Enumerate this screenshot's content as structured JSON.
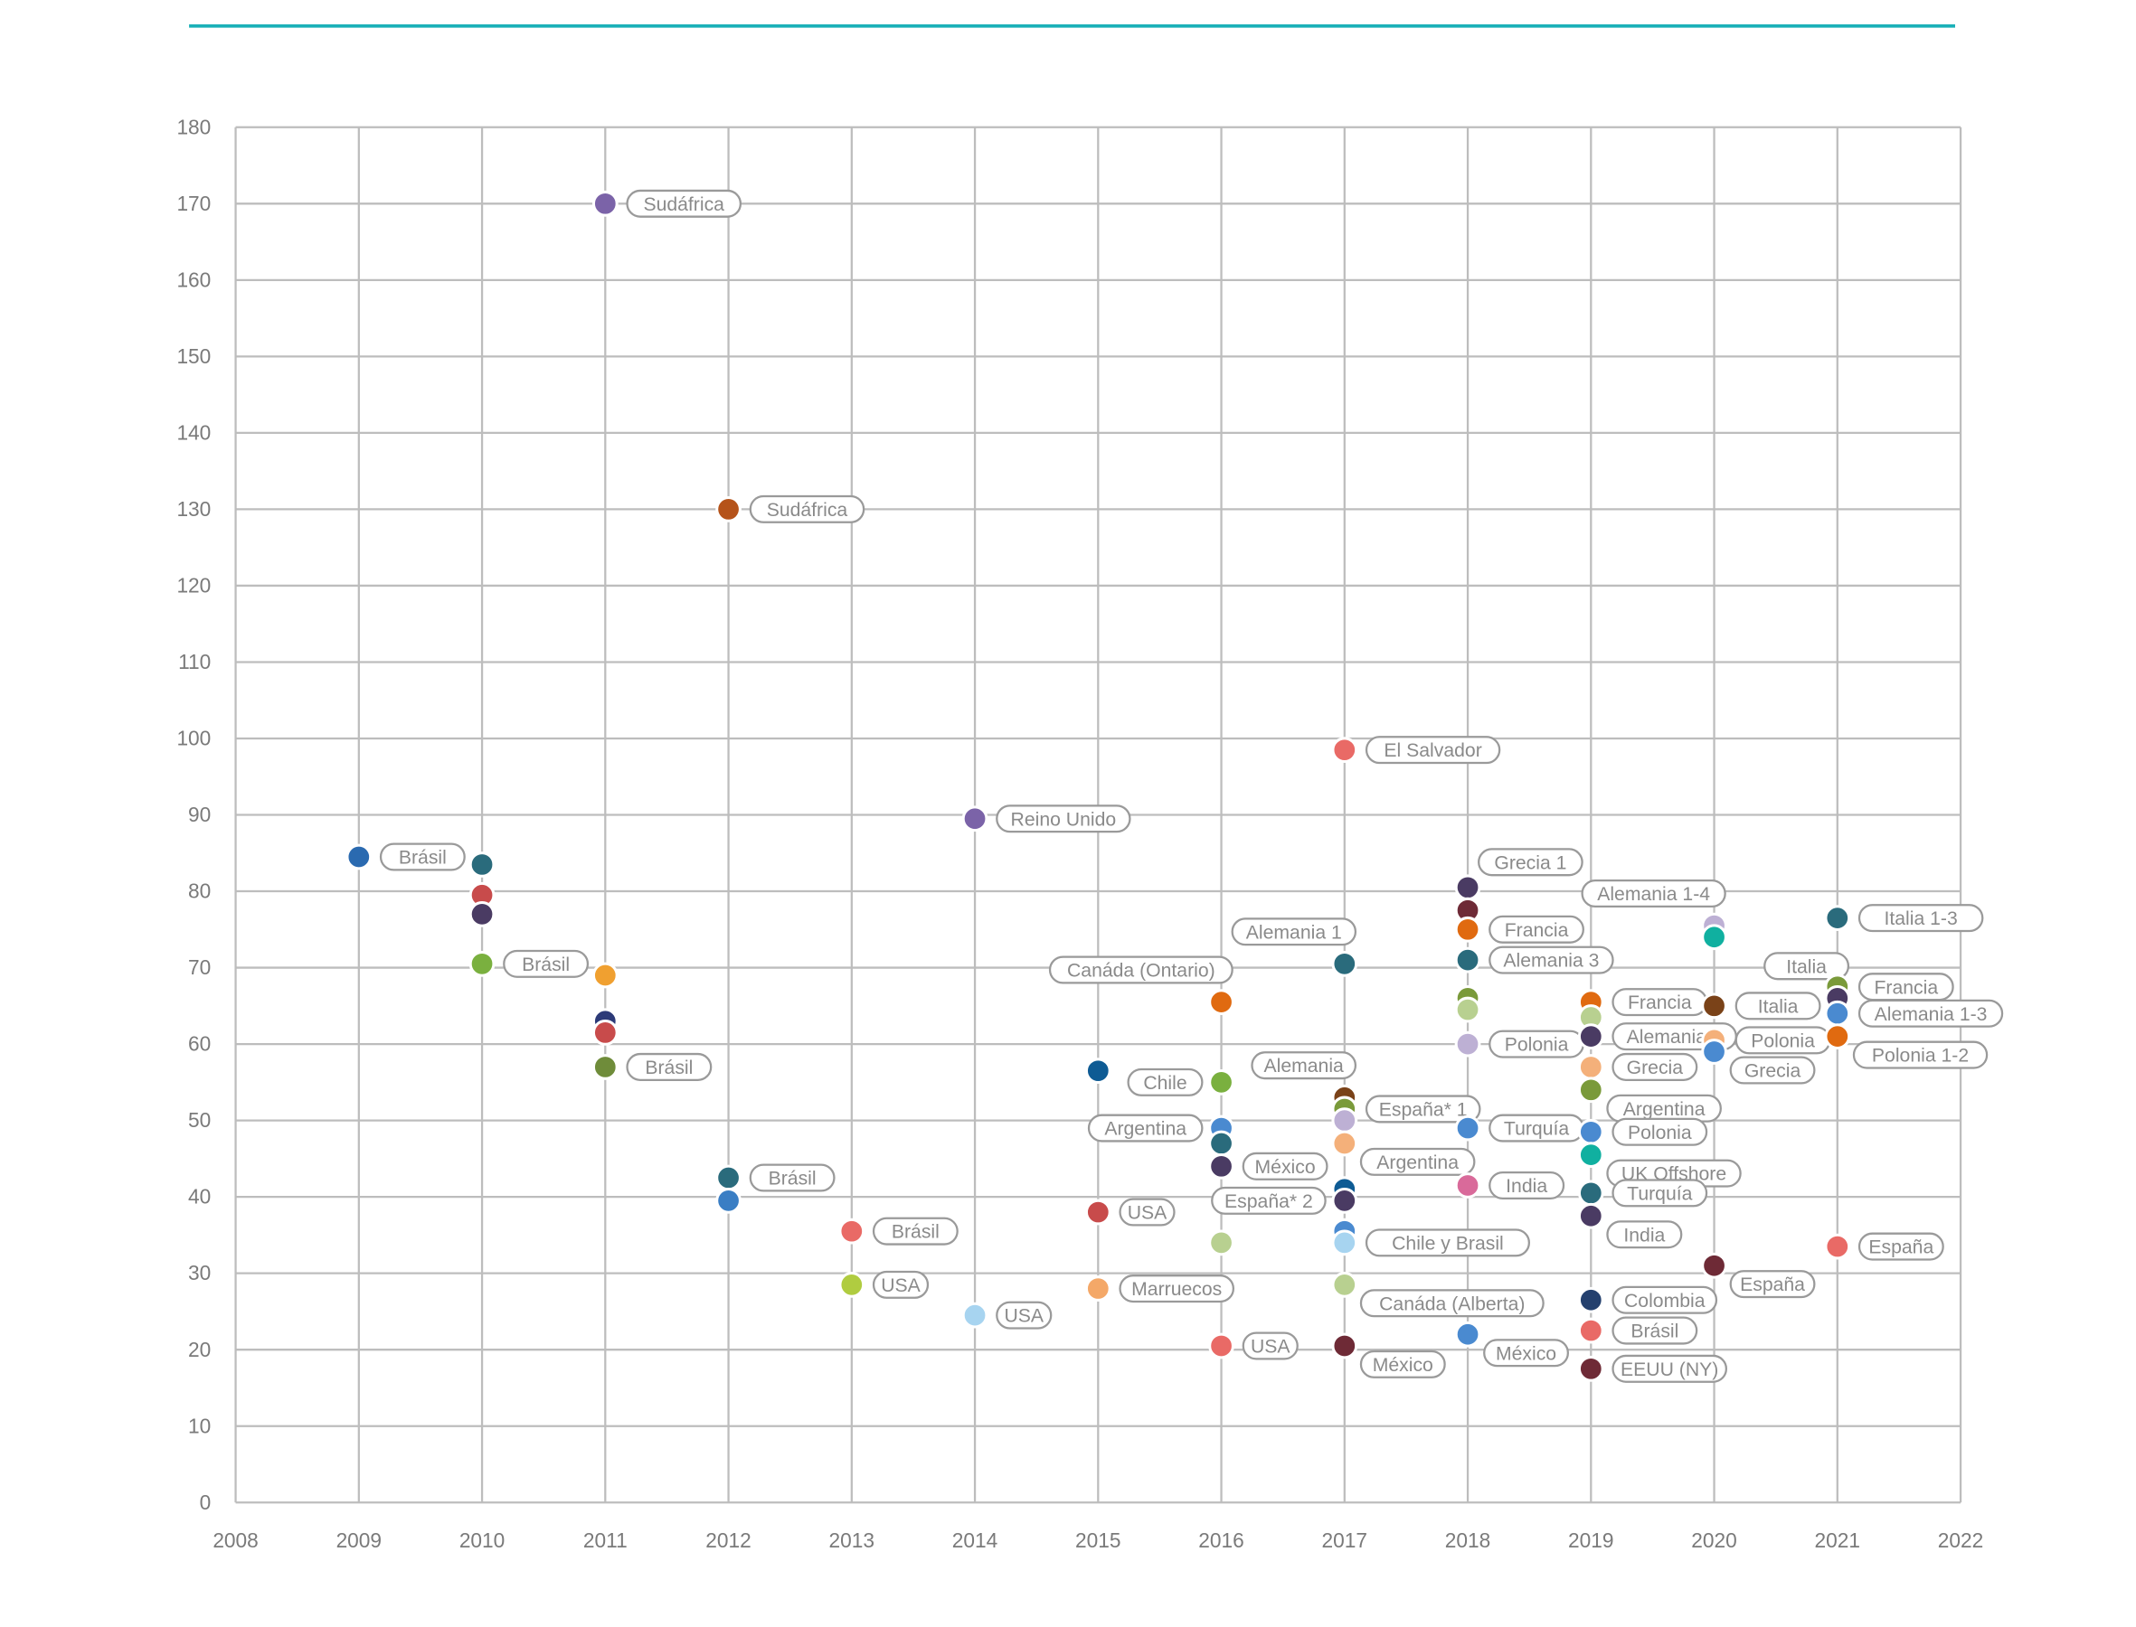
{
  "chart_data": {
    "type": "scatter",
    "title": "",
    "xlabel": "",
    "ylabel": "",
    "xlim": [
      2008,
      2022
    ],
    "ylim": [
      0,
      180
    ],
    "x_ticks": [
      2008,
      2009,
      2010,
      2011,
      2012,
      2013,
      2014,
      2015,
      2016,
      2017,
      2018,
      2019,
      2020,
      2021,
      2022
    ],
    "y_ticks": [
      0,
      10,
      20,
      30,
      40,
      50,
      60,
      70,
      80,
      90,
      100,
      110,
      120,
      130,
      140,
      150,
      160,
      170,
      180
    ],
    "grid": true,
    "accent_line_color": "#1ab0b8",
    "points": [
      {
        "x": 2009,
        "y": 84.5,
        "color": "#2a6ab0",
        "label": "Brásil",
        "side": "right"
      },
      {
        "x": 2010,
        "y": 83.5,
        "color": "#2a6b7c",
        "label": "",
        "side": "right"
      },
      {
        "x": 2010,
        "y": 79.5,
        "color": "#c84b4b",
        "label": "",
        "side": "right"
      },
      {
        "x": 2010,
        "y": 77,
        "color": "#4a3b63",
        "label": "",
        "side": "right"
      },
      {
        "x": 2010,
        "y": 70.5,
        "color": "#7ab03f",
        "label": "Brásil",
        "side": "right"
      },
      {
        "x": 2011,
        "y": 170,
        "color": "#7b63a8",
        "label": "Sudáfrica",
        "side": "right"
      },
      {
        "x": 2011,
        "y": 69,
        "color": "#f0a030",
        "label": "",
        "side": "right"
      },
      {
        "x": 2011,
        "y": 63,
        "color": "#2c3a78",
        "label": "",
        "side": "right"
      },
      {
        "x": 2011,
        "y": 61.5,
        "color": "#c84b4b",
        "label": "",
        "side": "right"
      },
      {
        "x": 2011,
        "y": 57,
        "color": "#6f8c3a",
        "label": "Brásil",
        "side": "right"
      },
      {
        "x": 2012,
        "y": 130,
        "color": "#b5531a",
        "label": "Sudáfrica",
        "side": "right"
      },
      {
        "x": 2012,
        "y": 42.5,
        "color": "#2a6b7c",
        "label": "Brásil",
        "side": "right"
      },
      {
        "x": 2012,
        "y": 39.5,
        "color": "#3a7ec4",
        "label": "",
        "side": "right"
      },
      {
        "x": 2013,
        "y": 35.5,
        "color": "#e96a66",
        "label": "Brásil",
        "side": "right"
      },
      {
        "x": 2013,
        "y": 28.5,
        "color": "#b0cc40",
        "label": "USA",
        "side": "right"
      },
      {
        "x": 2014,
        "y": 89.5,
        "color": "#7b63a8",
        "label": "Reino Unido",
        "side": "right"
      },
      {
        "x": 2014,
        "y": 24.5,
        "color": "#a7d4f0",
        "label": "USA",
        "side": "right"
      },
      {
        "x": 2015,
        "y": 56.5,
        "color": "#0e5b94",
        "label": "",
        "side": "right"
      },
      {
        "x": 2015,
        "y": 38,
        "color": "#c84b4b",
        "label": "USA",
        "side": "right"
      },
      {
        "x": 2015,
        "y": 28,
        "color": "#f4a868",
        "label": "Marruecos",
        "side": "right"
      },
      {
        "x": 2016,
        "y": 65.5,
        "color": "#e06a10",
        "label": "Canáda (Ontario)",
        "side": "above-left"
      },
      {
        "x": 2016,
        "y": 55,
        "color": "#7ab03f",
        "label": "Chile",
        "side": "left"
      },
      {
        "x": 2016,
        "y": 49,
        "color": "#4a8ad0",
        "label": "Argentina",
        "side": "left"
      },
      {
        "x": 2016,
        "y": 47,
        "color": "#2a6b7c",
        "label": "",
        "side": "right"
      },
      {
        "x": 2016,
        "y": 44,
        "color": "#4a3b63",
        "label": "México",
        "side": "right"
      },
      {
        "x": 2016,
        "y": 34,
        "color": "#b8d090",
        "label": "",
        "side": "right"
      },
      {
        "x": 2016,
        "y": 20.5,
        "color": "#e96a66",
        "label": "USA",
        "side": "right"
      },
      {
        "x": 2017,
        "y": 98.5,
        "color": "#e96a66",
        "label": "El Salvador",
        "side": "right"
      },
      {
        "x": 2017,
        "y": 70.5,
        "color": "#2a6b7c",
        "label": "Alemania 1",
        "side": "above-left"
      },
      {
        "x": 2017,
        "y": 53,
        "color": "#7a4218",
        "label": "Alemania",
        "side": "above-left"
      },
      {
        "x": 2017,
        "y": 51.5,
        "color": "#7a9a3a",
        "label": "España* 1",
        "side": "right"
      },
      {
        "x": 2017,
        "y": 50,
        "color": "#bdb0d4",
        "label": "",
        "side": "right"
      },
      {
        "x": 2017,
        "y": 47,
        "color": "#f4b07a",
        "label": "Argentina",
        "side": "below-right"
      },
      {
        "x": 2017,
        "y": 41,
        "color": "#0e5b94",
        "label": "",
        "side": "right"
      },
      {
        "x": 2017,
        "y": 39.5,
        "color": "#4a3b63",
        "label": "España* 2",
        "side": "left"
      },
      {
        "x": 2017,
        "y": 35.5,
        "color": "#4a8ad0",
        "label": "",
        "side": "right"
      },
      {
        "x": 2017,
        "y": 34,
        "color": "#a7d4f0",
        "label": "Chile y Brasil",
        "side": "right"
      },
      {
        "x": 2017,
        "y": 28.5,
        "color": "#b8d090",
        "label": "Canáda (Alberta)",
        "side": "below-right"
      },
      {
        "x": 2017,
        "y": 20.5,
        "color": "#6e2a36",
        "label": "México",
        "side": "below-right"
      },
      {
        "x": 2018,
        "y": 80.5,
        "color": "#4a3b63",
        "label": "Grecia 1",
        "side": "above-right"
      },
      {
        "x": 2018,
        "y": 77.5,
        "color": "#6e2a36",
        "label": "",
        "side": "right"
      },
      {
        "x": 2018,
        "y": 75,
        "color": "#e06a10",
        "label": "Francia",
        "side": "right"
      },
      {
        "x": 2018,
        "y": 71,
        "color": "#2a6b7c",
        "label": "Alemania 3",
        "side": "right"
      },
      {
        "x": 2018,
        "y": 66,
        "color": "#7a9a3a",
        "label": "",
        "side": "right"
      },
      {
        "x": 2018,
        "y": 64.5,
        "color": "#b8d090",
        "label": "",
        "side": "right"
      },
      {
        "x": 2018,
        "y": 60,
        "color": "#bdb0d4",
        "label": "Polonia",
        "side": "right"
      },
      {
        "x": 2018,
        "y": 49,
        "color": "#4a8ad0",
        "label": "Turquía",
        "side": "right"
      },
      {
        "x": 2018,
        "y": 41.5,
        "color": "#d96a9a",
        "label": "India",
        "side": "right"
      },
      {
        "x": 2018,
        "y": 22,
        "color": "#4a8ad0",
        "label": "México",
        "side": "below-right"
      },
      {
        "x": 2019,
        "y": 65.5,
        "color": "#e06a10",
        "label": "Francia",
        "side": "right"
      },
      {
        "x": 2019,
        "y": 63.5,
        "color": "#b8d090",
        "label": "",
        "side": "right"
      },
      {
        "x": 2019,
        "y": 61,
        "color": "#4a3b63",
        "label": "Alemania 3",
        "side": "right"
      },
      {
        "x": 2019,
        "y": 57,
        "color": "#f4b07a",
        "label": "Grecia",
        "side": "right"
      },
      {
        "x": 2019,
        "y": 54,
        "color": "#7a9a3a",
        "label": "Argentina",
        "side": "below-right"
      },
      {
        "x": 2019,
        "y": 48.5,
        "color": "#4a8ad0",
        "label": "Polonia",
        "side": "right"
      },
      {
        "x": 2019,
        "y": 45.5,
        "color": "#10b0a0",
        "label": "UK Offshore",
        "side": "below-right"
      },
      {
        "x": 2019,
        "y": 40.5,
        "color": "#2a6b7c",
        "label": "Turquía",
        "side": "right"
      },
      {
        "x": 2019,
        "y": 37.5,
        "color": "#4a3b63",
        "label": "India",
        "side": "below-right"
      },
      {
        "x": 2019,
        "y": 26.5,
        "color": "#24406e",
        "label": "Colombia",
        "side": "right"
      },
      {
        "x": 2019,
        "y": 22.5,
        "color": "#e96a66",
        "label": "Brásil",
        "side": "right"
      },
      {
        "x": 2019,
        "y": 17.5,
        "color": "#6e2a36",
        "label": "EEUU (NY)",
        "side": "right"
      },
      {
        "x": 2020,
        "y": 75.5,
        "color": "#bdb0d4",
        "label": "Alemania 1-4",
        "side": "above-left"
      },
      {
        "x": 2020,
        "y": 74,
        "color": "#10b0a0",
        "label": "",
        "side": "right"
      },
      {
        "x": 2020,
        "y": 65,
        "color": "#7a4218",
        "label": "Italia",
        "side": "right"
      },
      {
        "x": 2020,
        "y": 60.5,
        "color": "#f4b07a",
        "label": "Polonia",
        "side": "right"
      },
      {
        "x": 2020,
        "y": 59,
        "color": "#4a8ad0",
        "label": "Grecia",
        "side": "below-right"
      },
      {
        "x": 2020,
        "y": 31,
        "color": "#6e2a36",
        "label": "España",
        "side": "below-right"
      },
      {
        "x": 2021,
        "y": 76.5,
        "color": "#2a6b7c",
        "label": "Italia 1-3",
        "side": "right"
      },
      {
        "x": 2021,
        "y": 67.5,
        "color": "#7a9a3a",
        "label": "Francia",
        "side": "right"
      },
      {
        "x": 2021,
        "y": 66,
        "color": "#4a3b63",
        "label": "Italia",
        "side": "above-left"
      },
      {
        "x": 2021,
        "y": 64,
        "color": "#4a8ad0",
        "label": "Alemania 1-3",
        "side": "right"
      },
      {
        "x": 2021,
        "y": 61,
        "color": "#e06a10",
        "label": "Polonia 1-2",
        "side": "below-right"
      },
      {
        "x": 2021,
        "y": 33.5,
        "color": "#e96a66",
        "label": "España",
        "side": "right"
      }
    ]
  }
}
